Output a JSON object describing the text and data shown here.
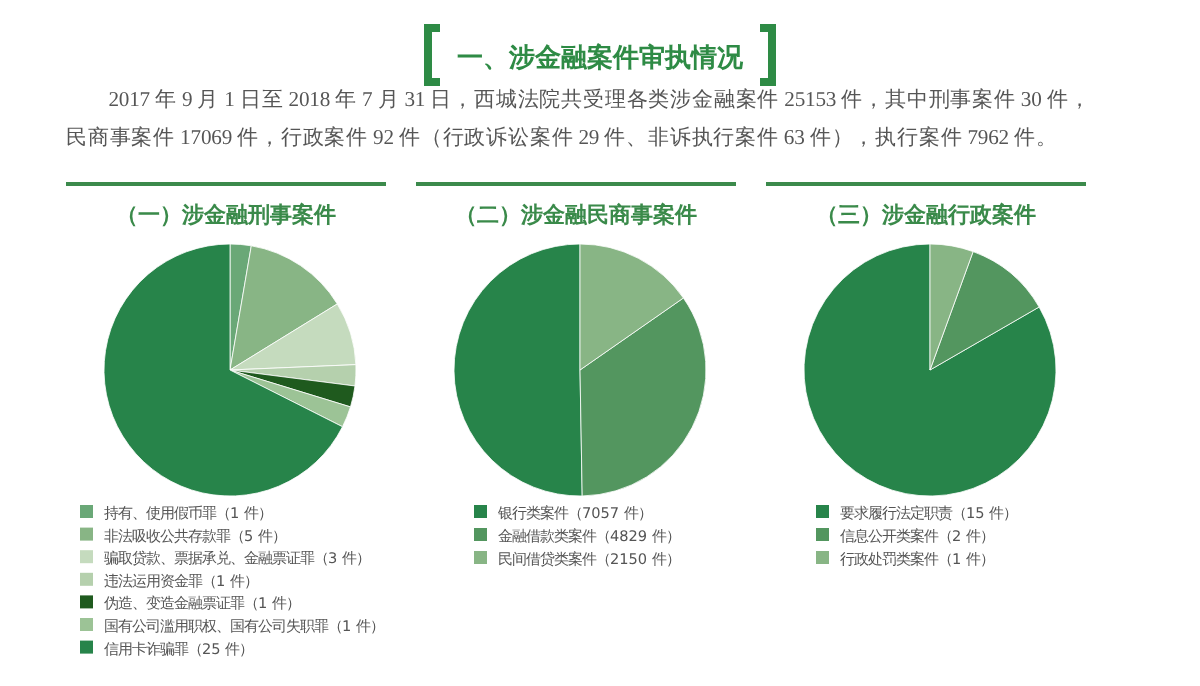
{
  "chart_data": [
    {
      "type": "other",
      "title": "一、涉金融案件审执情况",
      "annotations": [
        "2017 年 9 月 1 日至 2018 年 7 月 31 日，西城法院共受理各类涉金融案件 25153 件，其中刑事案件 30 件，民商事案件 17069 件，行政案件 92 件（行政诉讼案件 29 件、非诉执行案件 63 件），执行案件 7962 件。"
      ]
    },
    {
      "type": "pie",
      "title": "（一）涉金融刑事案件",
      "legend": "bottom",
      "categories": [
        "持有、使用假币罪（1 件）",
        "非法吸收公共存款罪（5 件）",
        "骗取贷款、票据承兑、金融票证罪（3 件）",
        "违法运用资金罪（1 件）",
        "伪造、变造金融票证罪（1 件）",
        "国有公司滥用职权、国有公司失职罪（1 件）",
        "信用卡诈骗罪（25 件）"
      ],
      "values": [
        1,
        5,
        3,
        1,
        1,
        1,
        25
      ],
      "colors": [
        "#6aa877",
        "#88b585",
        "#c5dbbe",
        "#b5d0ad",
        "#1f5a1e",
        "#9cc396",
        "#27844a"
      ]
    },
    {
      "type": "pie",
      "title": "（二）涉金融民商事案件",
      "legend": "bottom",
      "categories": [
        "银行类案件（7057 件）",
        "金融借款类案件（4829 件）",
        "民间借贷类案件（2150 件）"
      ],
      "values": [
        7057,
        4829,
        2150
      ],
      "colors": [
        "#27844a",
        "#53965f",
        "#88b585"
      ]
    },
    {
      "type": "pie",
      "title": "（三）涉金融行政案件",
      "legend": "bottom",
      "categories": [
        "要求履行法定职责（15 件）",
        "信息公开类案件（2 件）",
        "行政处罚类案件（1 件）"
      ],
      "values": [
        15,
        2,
        1
      ],
      "colors": [
        "#27844a",
        "#53965f",
        "#88b585"
      ]
    }
  ]
}
